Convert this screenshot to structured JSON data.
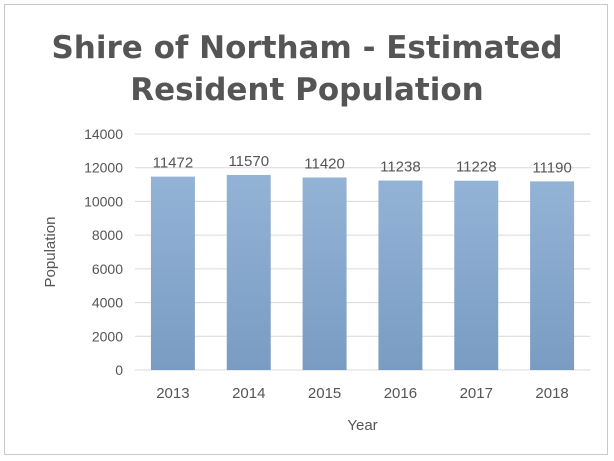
{
  "chart_data": {
    "type": "bar",
    "title_lines": [
      "Shire of Northam  - Estimated",
      "Resident Population"
    ],
    "xlabel": "Year",
    "ylabel": "Population",
    "categories": [
      "2013",
      "2014",
      "2015",
      "2016",
      "2017",
      "2018"
    ],
    "values": [
      11472,
      11570,
      11420,
      11238,
      11228,
      11190
    ],
    "data_labels": [
      "11472",
      "11570",
      "11420",
      "11238",
      "11228",
      "11190"
    ],
    "ylim": [
      0,
      14000
    ],
    "yticks": [
      "0",
      "2000",
      "4000",
      "6000",
      "8000",
      "10000",
      "12000",
      "14000"
    ],
    "grid": true,
    "legend": "none",
    "bar_color": "#93b3d6",
    "bar_color_dark": "#7a9cc2"
  }
}
